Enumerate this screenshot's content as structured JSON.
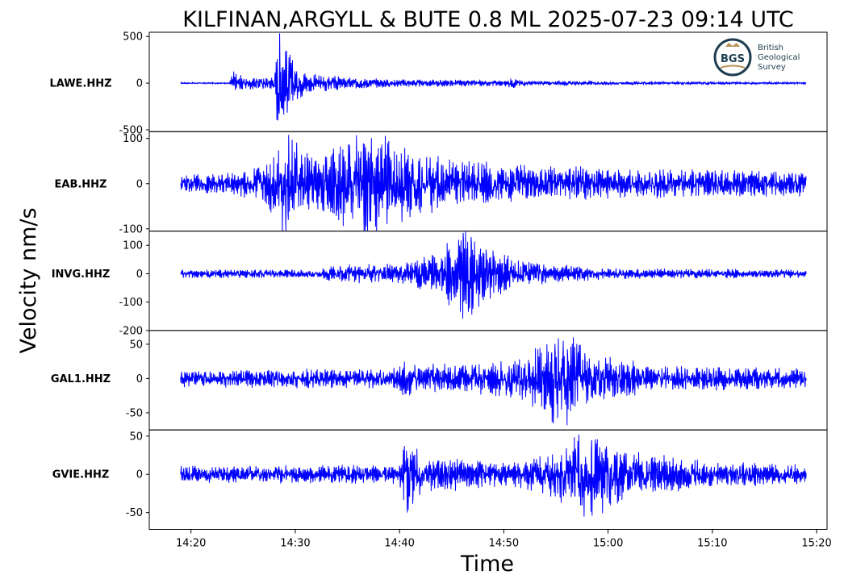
{
  "chart_data": {
    "type": "line",
    "title": "KILFINAN,ARGYLL & BUTE 0.8 ML   2025-07-23 09:14 UTC",
    "xlabel": "Time",
    "ylabel": "Velocity nm/s",
    "x_range": [
      "14:16",
      "15:21"
    ],
    "x_ticks": [
      "14:20",
      "14:30",
      "14:40",
      "14:50",
      "15:00",
      "15:10",
      "15:20"
    ],
    "line_color": "#0000ff",
    "series": [
      {
        "name": "LAWE.HHZ",
        "ylim": [
          -520,
          545
        ],
        "y_ticks": [
          500,
          0,
          -500
        ],
        "envelope": [
          {
            "t": "14:19",
            "amp": 5
          },
          {
            "t": "14:23.6",
            "amp": 6
          },
          {
            "t": "14:24",
            "amp": 120
          },
          {
            "t": "14:25",
            "amp": 60
          },
          {
            "t": "14:28",
            "amp": 60
          },
          {
            "t": "14:28.4",
            "amp": 500
          },
          {
            "t": "14:29",
            "amp": 300
          },
          {
            "t": "14:31",
            "amp": 90
          },
          {
            "t": "14:35",
            "amp": 50
          },
          {
            "t": "14:40",
            "amp": 35
          },
          {
            "t": "14:50",
            "amp": 25
          },
          {
            "t": "14:51",
            "amp": 45
          },
          {
            "t": "14:52",
            "amp": 20
          },
          {
            "t": "15:00",
            "amp": 15
          },
          {
            "t": "15:19",
            "amp": 8
          }
        ]
      },
      {
        "name": "EAB.HHZ",
        "ylim": [
          -105,
          115
        ],
        "y_ticks": [
          100,
          0,
          -100
        ],
        "envelope": [
          {
            "t": "14:19",
            "amp": 15
          },
          {
            "t": "14:24",
            "amp": 20
          },
          {
            "t": "14:27",
            "amp": 35
          },
          {
            "t": "14:29",
            "amp": 95
          },
          {
            "t": "14:31",
            "amp": 60
          },
          {
            "t": "14:33",
            "amp": 50
          },
          {
            "t": "14:36",
            "amp": 105
          },
          {
            "t": "14:39",
            "amp": 80
          },
          {
            "t": "14:42",
            "amp": 55
          },
          {
            "t": "14:50",
            "amp": 35
          },
          {
            "t": "15:00",
            "amp": 28
          },
          {
            "t": "15:19",
            "amp": 22
          }
        ]
      },
      {
        "name": "INVG.HHZ",
        "ylim": [
          -200,
          150
        ],
        "y_ticks": [
          100,
          0,
          -100,
          -200
        ],
        "envelope": [
          {
            "t": "14:19",
            "amp": 12
          },
          {
            "t": "14:32",
            "amp": 12
          },
          {
            "t": "14:34",
            "amp": 25
          },
          {
            "t": "14:40",
            "amp": 30
          },
          {
            "t": "14:44",
            "amp": 60
          },
          {
            "t": "14:46",
            "amp": 150
          },
          {
            "t": "14:48",
            "amp": 80
          },
          {
            "t": "14:52",
            "amp": 35
          },
          {
            "t": "15:00",
            "amp": 15
          },
          {
            "t": "15:19",
            "amp": 12
          }
        ]
      },
      {
        "name": "GAL1.HHZ",
        "ylim": [
          -75,
          70
        ],
        "y_ticks": [
          50,
          0,
          -50
        ],
        "envelope": [
          {
            "t": "14:19",
            "amp": 10
          },
          {
            "t": "14:39",
            "amp": 12
          },
          {
            "t": "14:40",
            "amp": 20
          },
          {
            "t": "14:46",
            "amp": 16
          },
          {
            "t": "14:52",
            "amp": 25
          },
          {
            "t": "14:55.5",
            "amp": 65
          },
          {
            "t": "14:58",
            "amp": 30
          },
          {
            "t": "15:05",
            "amp": 15
          },
          {
            "t": "15:19",
            "amp": 12
          }
        ]
      },
      {
        "name": "GVIE.HHZ",
        "ylim": [
          -72,
          58
        ],
        "y_ticks": [
          50,
          0,
          -50
        ],
        "envelope": [
          {
            "t": "14:19",
            "amp": 9
          },
          {
            "t": "14:40",
            "amp": 10
          },
          {
            "t": "14:40.5",
            "amp": 48
          },
          {
            "t": "14:42",
            "amp": 22
          },
          {
            "t": "14:50",
            "amp": 12
          },
          {
            "t": "14:54",
            "amp": 20
          },
          {
            "t": "14:58",
            "amp": 48
          },
          {
            "t": "15:02",
            "amp": 25
          },
          {
            "t": "15:10",
            "amp": 14
          },
          {
            "t": "15:19",
            "amp": 10
          }
        ]
      }
    ]
  },
  "logo": {
    "initials": "BGS",
    "line1": "British",
    "line2": "Geological",
    "line3": "Survey",
    "ring_color": "#1d3d4f",
    "gold_color": "#b8955a"
  }
}
